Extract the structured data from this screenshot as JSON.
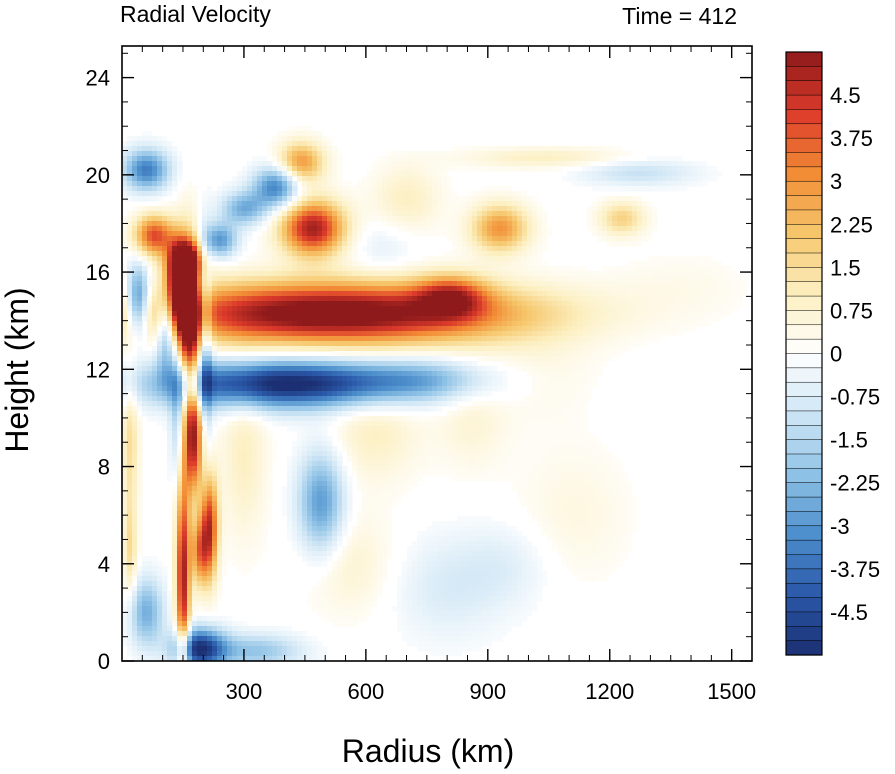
{
  "chart_data": {
    "type": "heatmap",
    "title_left": "Radial Velocity",
    "title_right": "Time = 412",
    "xlabel": "Radius (km)",
    "ylabel": "Height (km)",
    "xlim": [
      0,
      1550
    ],
    "ylim": [
      0,
      25.3
    ],
    "x_ticks": [
      300,
      600,
      900,
      1200,
      1500
    ],
    "y_ticks": [
      0,
      4,
      8,
      12,
      16,
      20,
      24
    ],
    "colorbar": {
      "min": -5.25,
      "max": 5.25,
      "step": 0.25,
      "tick_labels": [
        "4.5",
        "3.75",
        "3",
        "2.25",
        "1.5",
        "0.75",
        "0",
        "-0.75",
        "-1.5",
        "-2.25",
        "-3",
        "-3.75",
        "-4.5"
      ],
      "tick_values": [
        4.5,
        3.75,
        3,
        2.25,
        1.5,
        0.75,
        0,
        -0.75,
        -1.5,
        -2.25,
        -3,
        -3.75,
        -4.5
      ]
    },
    "features": [
      {
        "radius_km": 520,
        "height_km": 14.3,
        "value": 6.0,
        "sr": 320,
        "sh": 0.9
      },
      {
        "radius_km": 810,
        "height_km": 15.0,
        "value": 3.0,
        "sr": 60,
        "sh": 0.6
      },
      {
        "radius_km": 400,
        "height_km": 11.4,
        "value": -5.5,
        "sr": 220,
        "sh": 0.7
      },
      {
        "radius_km": 750,
        "height_km": 11.6,
        "value": -1.5,
        "sr": 120,
        "sh": 0.6
      },
      {
        "radius_km": 160,
        "height_km": 13.5,
        "value": 5.0,
        "sr": 25,
        "sh": 2.5
      },
      {
        "radius_km": 130,
        "height_km": 15.5,
        "value": 4.5,
        "sr": 25,
        "sh": 1.0
      },
      {
        "radius_km": 80,
        "height_km": 17.5,
        "value": 4.0,
        "sr": 35,
        "sh": 0.6
      },
      {
        "radius_km": 160,
        "height_km": 16.5,
        "value": 4.5,
        "sr": 30,
        "sh": 0.6
      },
      {
        "radius_km": 60,
        "height_km": 20.2,
        "value": -3.5,
        "sr": 40,
        "sh": 0.6
      },
      {
        "radius_km": 40,
        "height_km": 14.8,
        "value": -4.0,
        "sr": 20,
        "sh": 1.0
      },
      {
        "radius_km": 110,
        "height_km": 14.0,
        "value": -3.5,
        "sr": 18,
        "sh": 1.5
      },
      {
        "radius_km": 205,
        "height_km": 12.5,
        "value": -2.5,
        "sr": 12,
        "sh": 3.0
      },
      {
        "radius_km": 140,
        "height_km": 10.5,
        "value": -3.0,
        "sr": 15,
        "sh": 2.0
      },
      {
        "radius_km": 175,
        "height_km": 9.0,
        "value": 4.5,
        "sr": 18,
        "sh": 1.5
      },
      {
        "radius_km": 150,
        "height_km": 3.5,
        "value": 5.0,
        "sr": 12,
        "sh": 3.0
      },
      {
        "radius_km": 215,
        "height_km": 5.5,
        "value": 4.5,
        "sr": 15,
        "sh": 1.5
      },
      {
        "radius_km": 190,
        "height_km": 4.5,
        "value": 3.0,
        "sr": 15,
        "sh": 1.0
      },
      {
        "radius_km": 190,
        "height_km": 0.5,
        "value": -5.0,
        "sr": 45,
        "sh": 0.6
      },
      {
        "radius_km": 330,
        "height_km": 0.4,
        "value": -2.0,
        "sr": 80,
        "sh": 0.5
      },
      {
        "radius_km": 60,
        "height_km": 2.0,
        "value": -2.5,
        "sr": 30,
        "sh": 1.0
      },
      {
        "radius_km": 490,
        "height_km": 6.5,
        "value": -3.0,
        "sr": 40,
        "sh": 1.5
      },
      {
        "radius_km": 470,
        "height_km": 17.8,
        "value": 5.0,
        "sr": 55,
        "sh": 0.8
      },
      {
        "radius_km": 380,
        "height_km": 19.5,
        "value": -3.5,
        "sr": 40,
        "sh": 0.6
      },
      {
        "radius_km": 300,
        "height_km": 18.6,
        "value": -2.5,
        "sr": 40,
        "sh": 0.5
      },
      {
        "radius_km": 440,
        "height_km": 20.5,
        "value": 3.0,
        "sr": 40,
        "sh": 0.6
      },
      {
        "radius_km": 240,
        "height_km": 17.3,
        "value": -3.0,
        "sr": 30,
        "sh": 0.5
      },
      {
        "radius_km": 930,
        "height_km": 17.8,
        "value": 3.0,
        "sr": 50,
        "sh": 0.7
      },
      {
        "radius_km": 1230,
        "height_km": 18.2,
        "value": 1.8,
        "sr": 40,
        "sh": 0.5
      },
      {
        "radius_km": 1050,
        "height_km": 20.7,
        "value": 1.0,
        "sr": 150,
        "sh": 0.3
      },
      {
        "radius_km": 1270,
        "height_km": 20.1,
        "value": -1.2,
        "sr": 100,
        "sh": 0.4
      },
      {
        "radius_km": 620,
        "height_km": 9.5,
        "value": 1.0,
        "sr": 80,
        "sh": 1.5
      },
      {
        "radius_km": 560,
        "height_km": 4.0,
        "value": 0.8,
        "sr": 80,
        "sh": 1.5
      },
      {
        "radius_km": 800,
        "height_km": 3.0,
        "value": -0.8,
        "sr": 100,
        "sh": 1.5
      },
      {
        "radius_km": 860,
        "height_km": 10.0,
        "value": 0.7,
        "sr": 60,
        "sh": 1.5
      },
      {
        "radius_km": 950,
        "height_km": 4.0,
        "value": -0.6,
        "sr": 80,
        "sh": 1.2
      },
      {
        "radius_km": 1110,
        "height_km": 6.0,
        "value": 0.5,
        "sr": 100,
        "sh": 2.0
      },
      {
        "radius_km": 1030,
        "height_km": 12.0,
        "value": 0.4,
        "sr": 100,
        "sh": 1.5
      },
      {
        "radius_km": 300,
        "height_km": 8.5,
        "value": 1.0,
        "sr": 40,
        "sh": 2.5
      },
      {
        "radius_km": 20,
        "height_km": 9.0,
        "value": 1.5,
        "sr": 15,
        "sh": 2.0
      },
      {
        "radius_km": 20,
        "height_km": 4.5,
        "value": 1.5,
        "sr": 12,
        "sh": 1.5
      },
      {
        "radius_km": 700,
        "height_km": 19.0,
        "value": 1.0,
        "sr": 60,
        "sh": 1.0
      },
      {
        "radius_km": 640,
        "height_km": 17.0,
        "value": -0.6,
        "sr": 60,
        "sh": 0.8
      },
      {
        "radius_km": 1380,
        "height_km": 15.5,
        "value": 0.3,
        "sr": 120,
        "sh": 1.0
      }
    ],
    "colors": {
      "stops": [
        "#1b2f72",
        "#2a58a8",
        "#4c8fcc",
        "#8fc2e6",
        "#cfe6f5",
        "#ffffff",
        "#fcefc0",
        "#f6c66b",
        "#f28c35",
        "#dc3a2a",
        "#8e1a1b"
      ]
    }
  }
}
